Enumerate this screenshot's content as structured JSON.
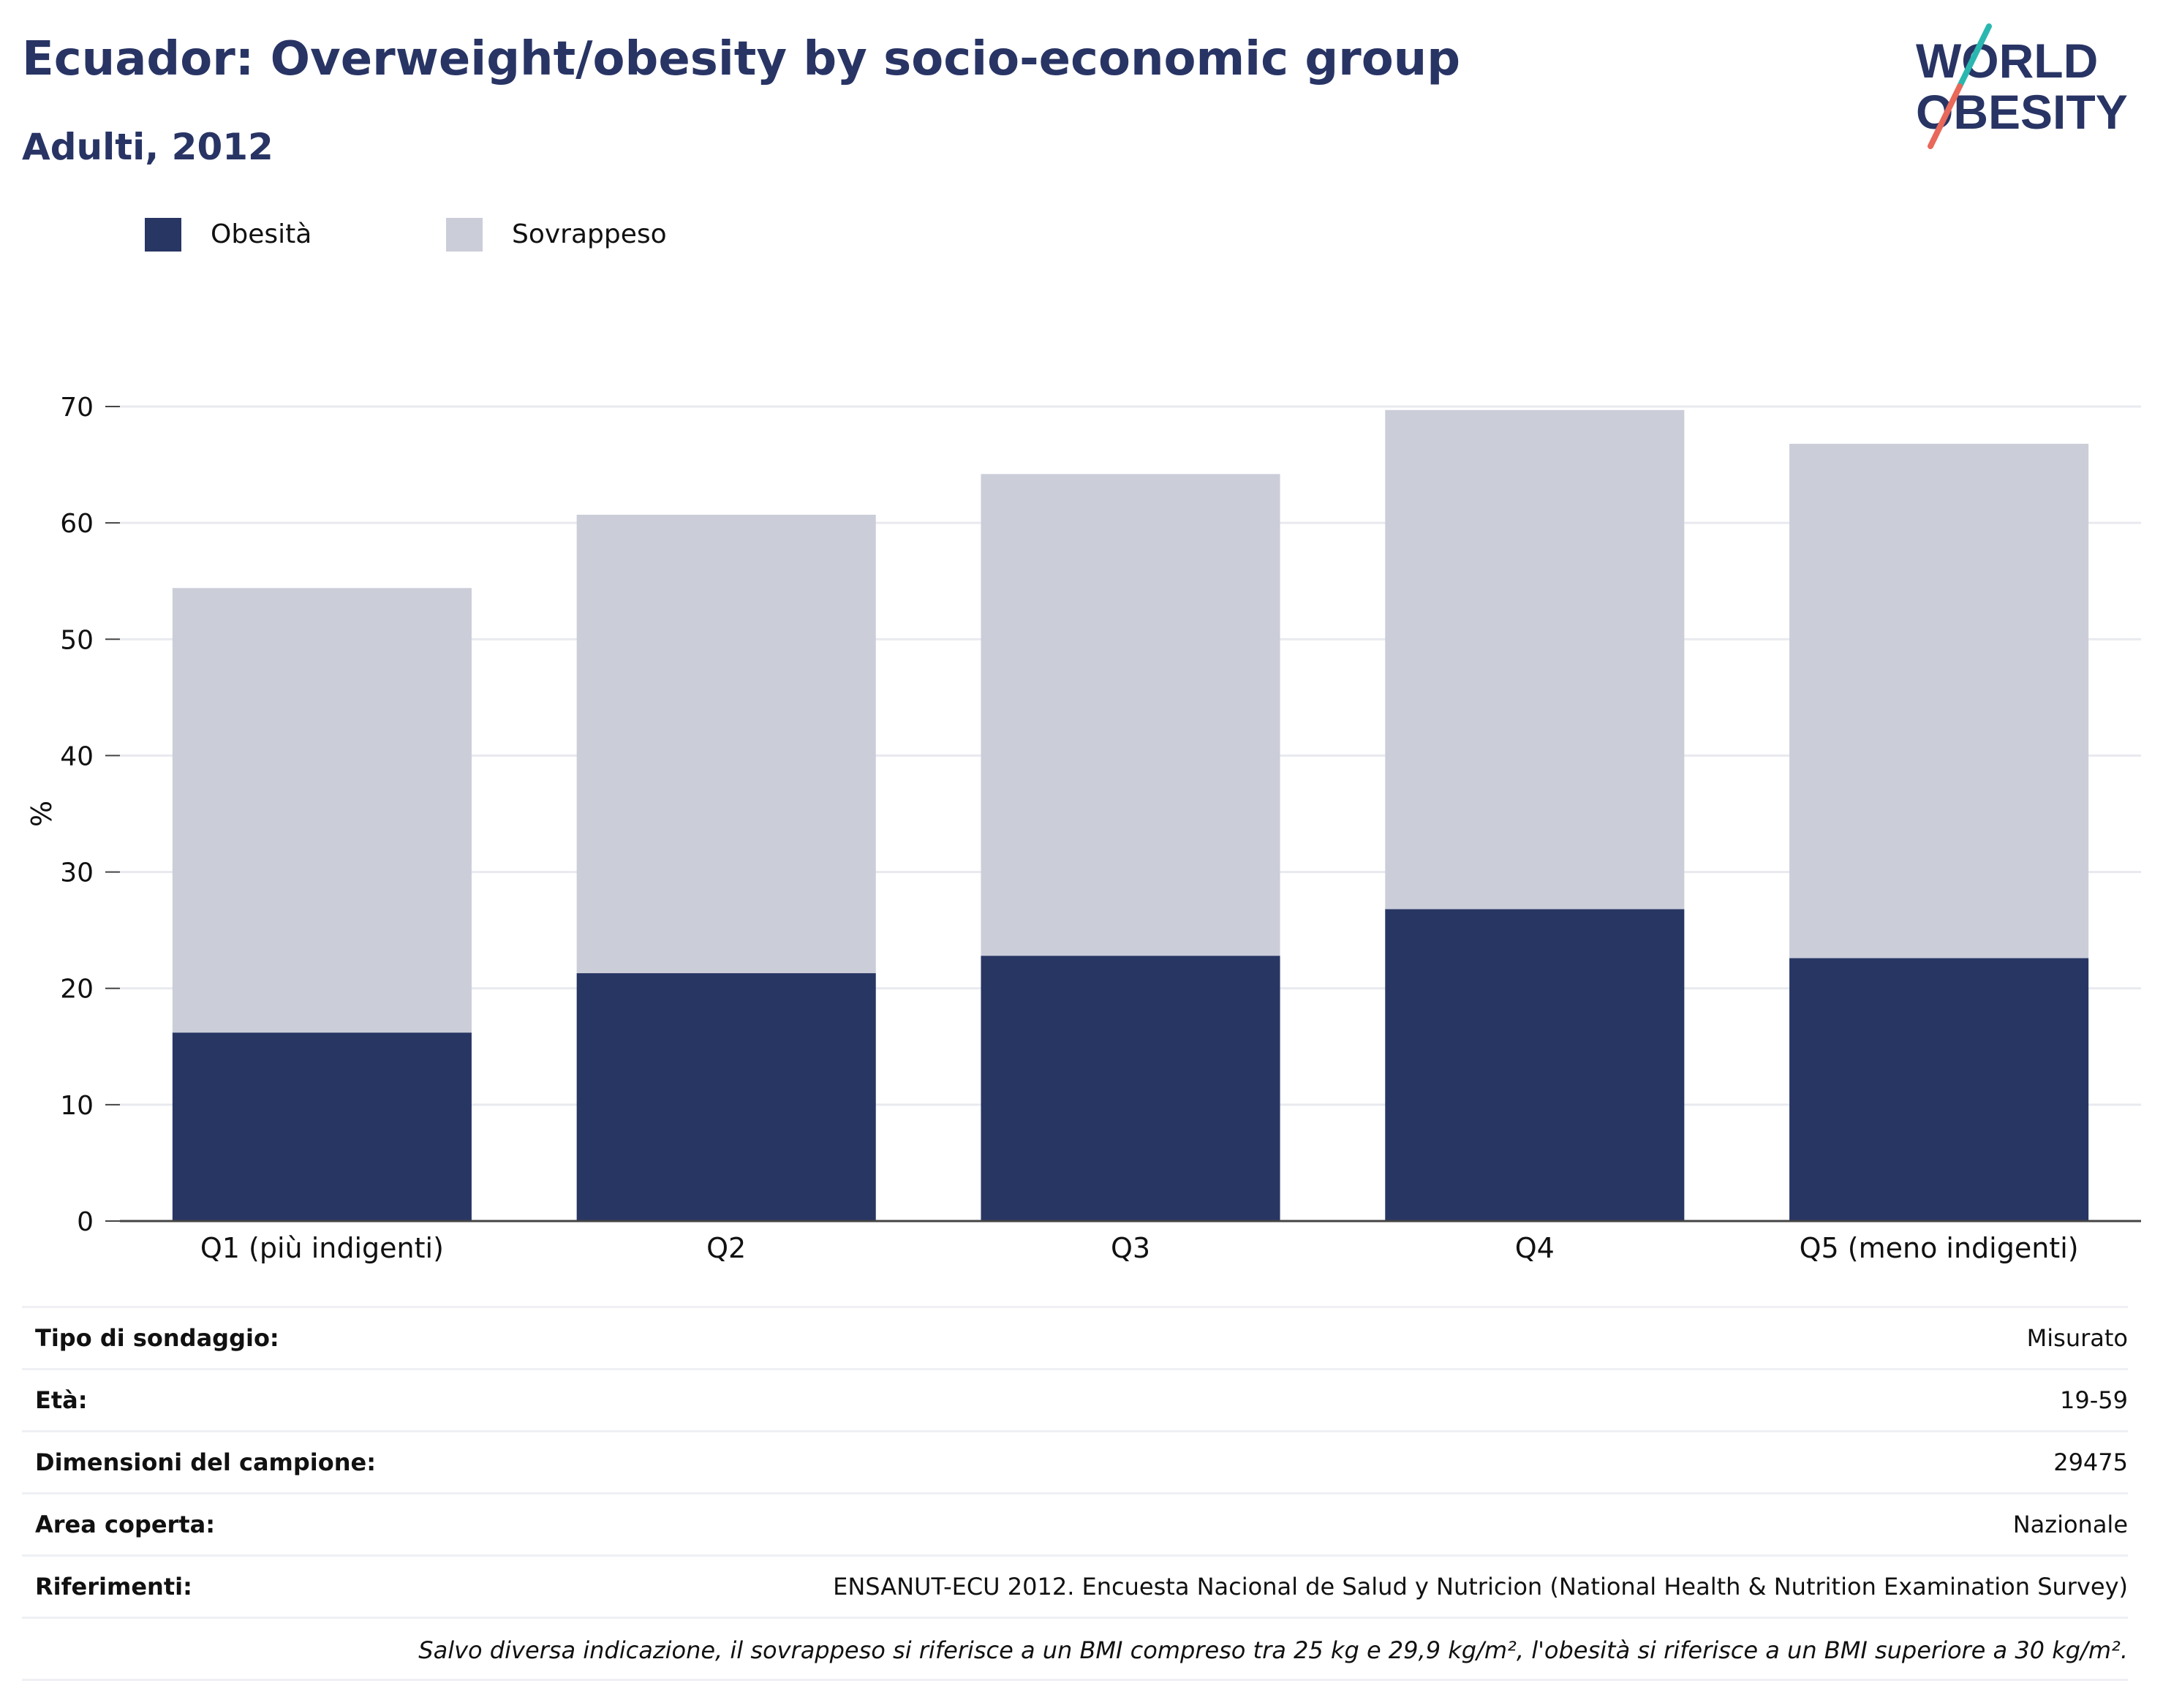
{
  "header": {
    "title": "Ecuador: Overweight/obesity by socio-economic group",
    "subtitle": "Adulti, 2012"
  },
  "logo": {
    "line1": "WORLD",
    "line2": "OBESITY"
  },
  "colors": {
    "obesity": "#283664",
    "overweight": "#cbcdd9",
    "text": "#283464",
    "accent_teal": "#2ab7b0",
    "accent_red": "#e8685a"
  },
  "chart_data": {
    "type": "bar",
    "stacked": true,
    "categories": [
      "Q1 (più indigenti)",
      "Q2",
      "Q3",
      "Q4",
      "Q5 (meno indigenti)"
    ],
    "series": [
      {
        "name": "Obesità",
        "values": [
          16.2,
          21.3,
          22.8,
          26.8,
          22.6
        ]
      },
      {
        "name": "Sovrappeso",
        "values": [
          38.2,
          39.4,
          41.4,
          42.9,
          44.2
        ]
      }
    ],
    "ylabel": "%",
    "ylim": [
      0,
      70
    ],
    "yticks": [
      0,
      10,
      20,
      30,
      40,
      50,
      60,
      70
    ],
    "grid": true,
    "legend_position": "top-left"
  },
  "info": {
    "rows": [
      {
        "label": "Tipo di sondaggio:",
        "value": "Misurato"
      },
      {
        "label": "Età:",
        "value": "19-59"
      },
      {
        "label": "Dimensioni del campione:",
        "value": "29475"
      },
      {
        "label": "Area coperta:",
        "value": "Nazionale"
      },
      {
        "label": "Riferimenti:",
        "value": "ENSANUT-ECU 2012. Encuesta Nacional de Salud y Nutricion (National Health & Nutrition Examination Survey)"
      }
    ],
    "note": "Salvo diversa indicazione, il sovrappeso si riferisce a un BMI compreso tra 25 kg e 29,9 kg/m², l'obesità si riferisce a un BMI superiore a 30 kg/m²."
  }
}
